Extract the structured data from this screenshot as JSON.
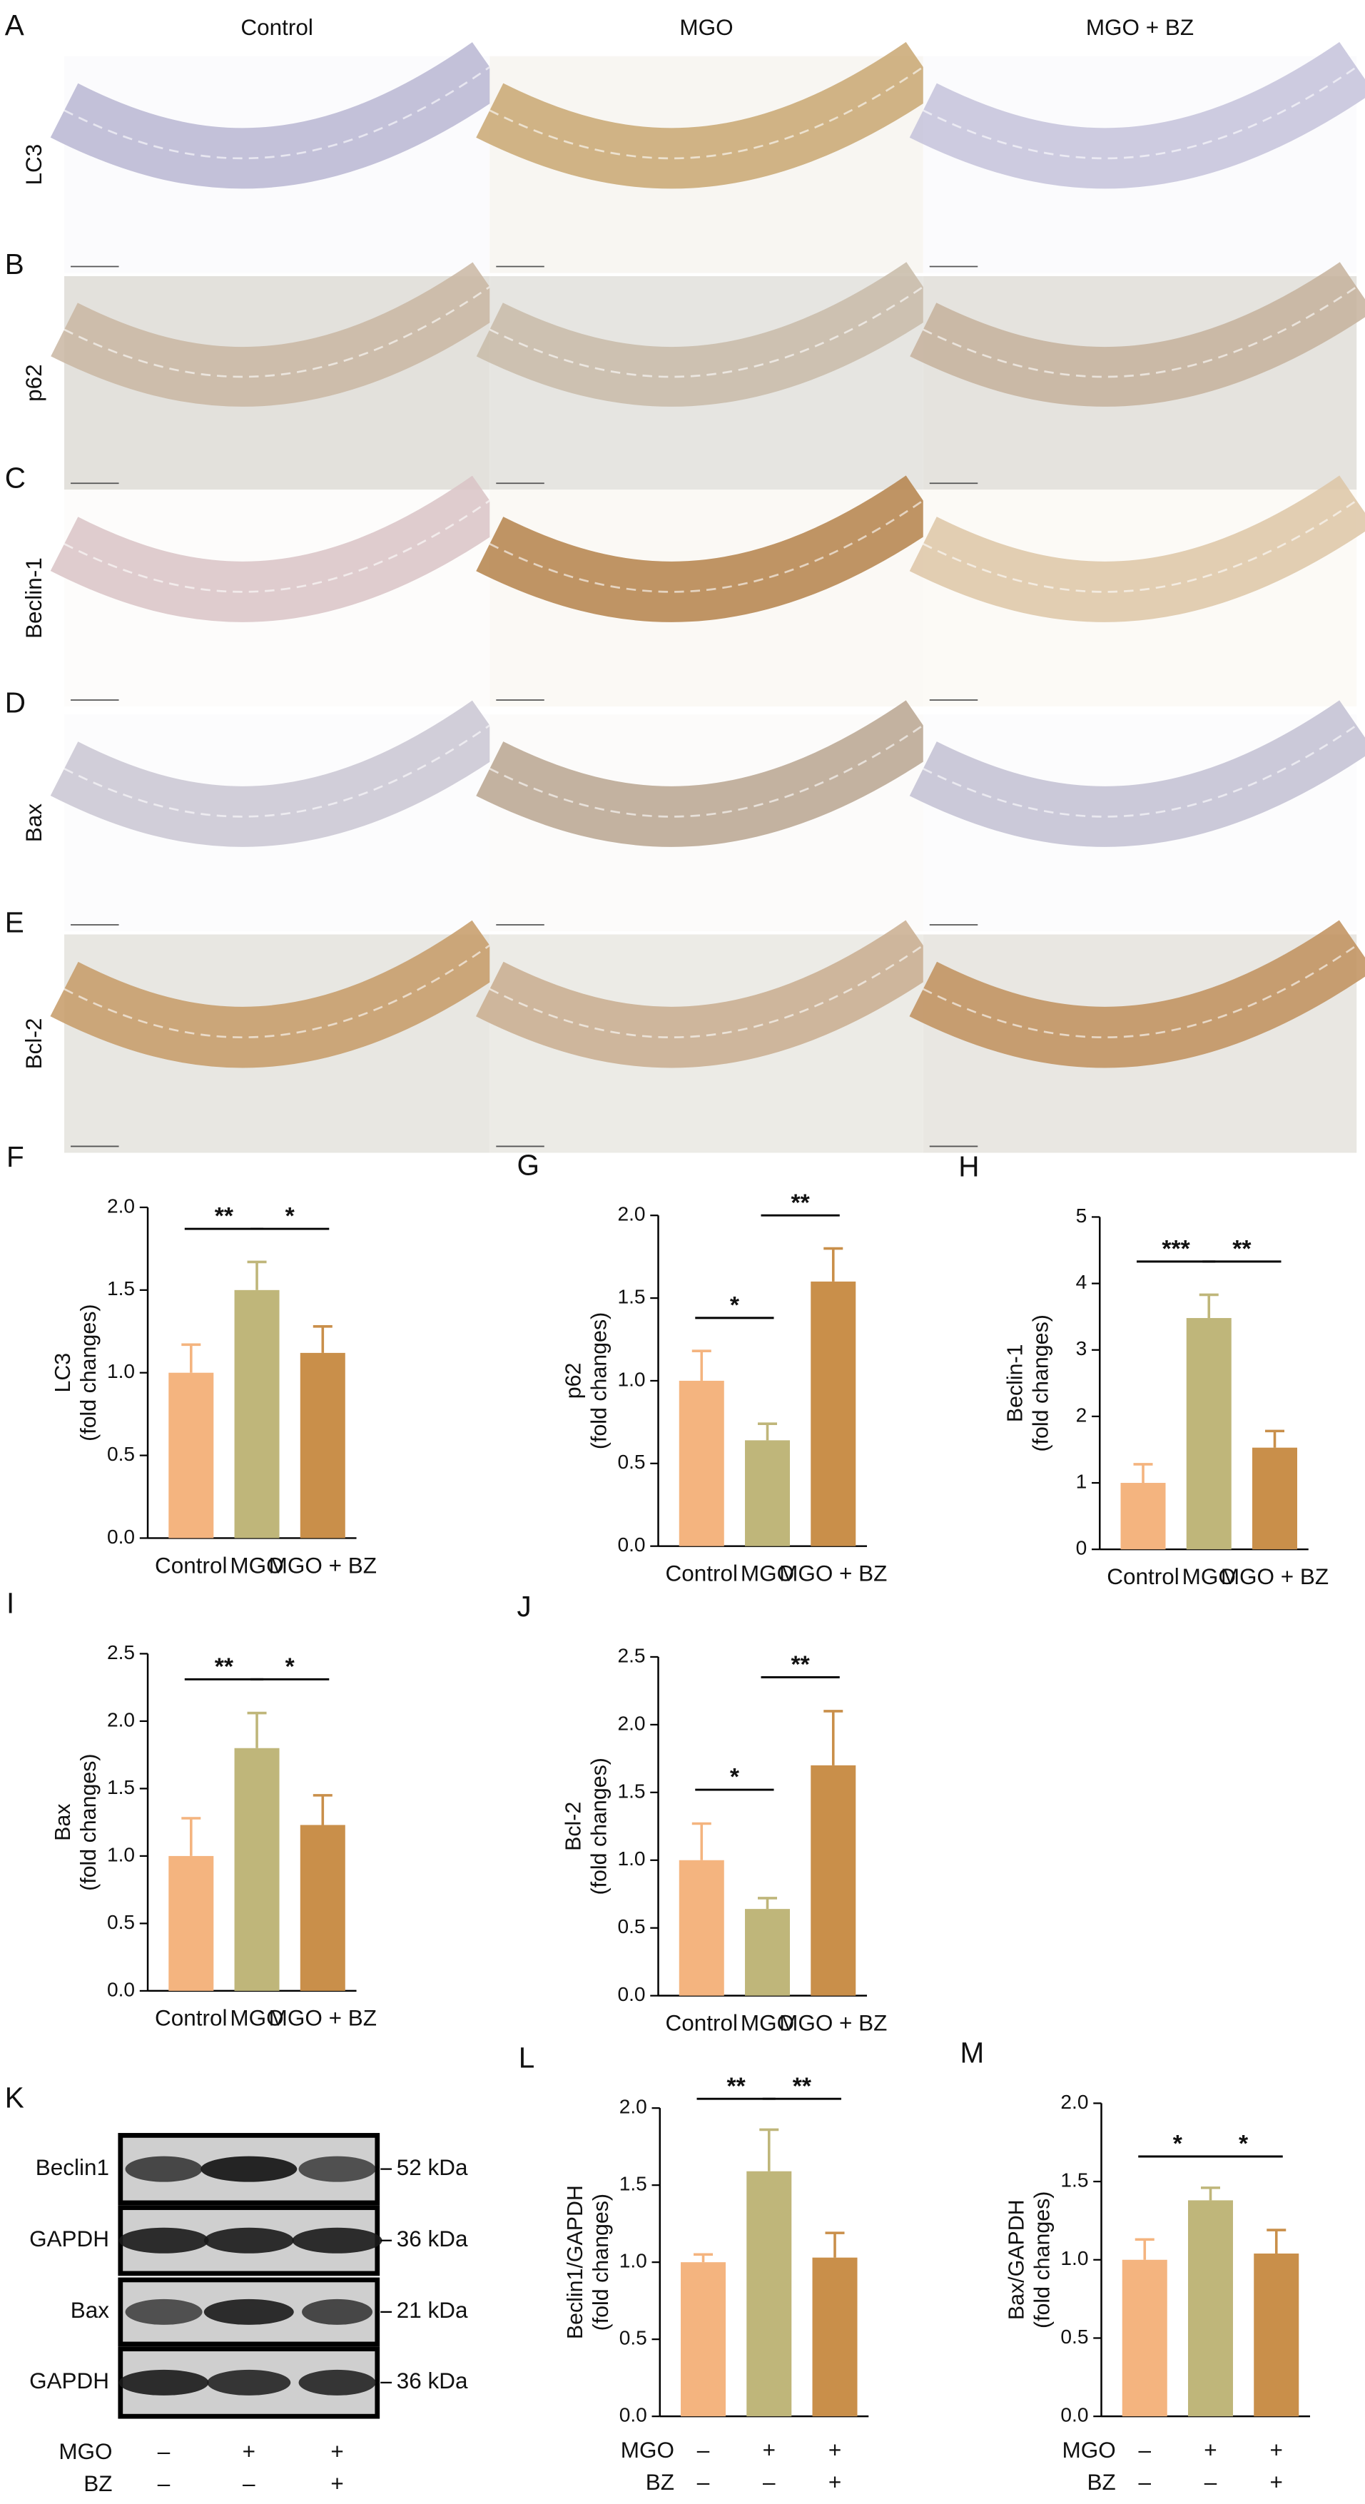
{
  "histology": {
    "columns": [
      "Control",
      "MGO",
      "MGO + BZ"
    ],
    "rows": [
      {
        "panel": "A",
        "label": "LC3"
      },
      {
        "panel": "B",
        "label": "p62"
      },
      {
        "panel": "C",
        "label": "Beclin-1"
      },
      {
        "panel": "D",
        "label": "Bax"
      },
      {
        "panel": "E",
        "label": "Bcl-2"
      }
    ]
  },
  "blot": {
    "panel": "K",
    "rows": [
      {
        "label": "Beclin1",
        "size": "52 kDa"
      },
      {
        "label": "GAPDH",
        "size": "36 kDa"
      },
      {
        "label": "Bax",
        "size": "21 kDa"
      },
      {
        "label": "GAPDH",
        "size": "36 kDa"
      }
    ],
    "conditions": [
      {
        "label": "MGO",
        "signs": [
          "–",
          "+",
          "+"
        ]
      },
      {
        "label": "BZ",
        "signs": [
          "–",
          "–",
          "+"
        ]
      }
    ]
  },
  "chart_data": [
    {
      "type": "bar",
      "panel": "F",
      "ylabel": [
        "LC3",
        "(fold changes)"
      ],
      "categories": [
        "Control",
        "MGO",
        "MGO + BZ"
      ],
      "values": [
        1.0,
        1.5,
        1.12
      ],
      "errors": [
        0.17,
        0.17,
        0.16
      ],
      "colors": [
        "#f4b47f",
        "#bfb67a",
        "#c98f4a"
      ],
      "ylim": [
        0,
        2.0
      ],
      "yticks": [
        {
          "value": 0,
          "label": "0.0"
        },
        0.5,
        {
          "value": 1,
          "label": "1.0"
        },
        1.5,
        {
          "value": 2,
          "label": "2.0"
        }
      ],
      "significance": [
        {
          "label": "**",
          "between": [
            0,
            1
          ]
        },
        {
          "label": "*",
          "between": [
            1,
            2
          ]
        }
      ]
    },
    {
      "type": "bar",
      "panel": "G",
      "ylabel": [
        "p62",
        "(fold changes)"
      ],
      "categories": [
        "Control",
        "MGO",
        "MGO + BZ"
      ],
      "values": [
        1.0,
        0.64,
        1.6
      ],
      "errors": [
        0.18,
        0.1,
        0.2
      ],
      "colors": [
        "#f4b47f",
        "#bfb67a",
        "#c98f4a"
      ],
      "ylim": [
        0,
        2.0
      ],
      "yticks": [
        {
          "value": 0,
          "label": "0.0"
        },
        0.5,
        {
          "value": 1,
          "label": "1.0"
        },
        1.5,
        {
          "value": 2,
          "label": "2.0"
        }
      ],
      "significance": [
        {
          "label": "*",
          "between": [
            0,
            1
          ]
        },
        {
          "label": "**",
          "between": [
            1,
            2
          ]
        }
      ]
    },
    {
      "type": "bar",
      "panel": "H",
      "ylabel": [
        "Beclin-1",
        "(fold changes)"
      ],
      "categories": [
        "Control",
        "MGO",
        "MGO + BZ"
      ],
      "values": [
        1.0,
        3.48,
        1.53
      ],
      "errors": [
        0.28,
        0.35,
        0.25
      ],
      "colors": [
        "#f4b47f",
        "#bfb67a",
        "#c98f4a"
      ],
      "ylim": [
        0,
        5
      ],
      "yticks": [
        0,
        1,
        2,
        3,
        4,
        5
      ],
      "significance": [
        {
          "label": "***",
          "between": [
            0,
            1
          ]
        },
        {
          "label": "**",
          "between": [
            1,
            2
          ]
        }
      ]
    },
    {
      "type": "bar",
      "panel": "I",
      "ylabel": [
        "Bax",
        "(fold changes)"
      ],
      "categories": [
        "Control",
        "MGO",
        "MGO + BZ"
      ],
      "values": [
        1.0,
        1.8,
        1.23
      ],
      "errors": [
        0.28,
        0.26,
        0.22
      ],
      "colors": [
        "#f4b47f",
        "#bfb67a",
        "#c98f4a"
      ],
      "ylim": [
        0,
        2.5
      ],
      "yticks": [
        {
          "value": 0,
          "label": "0.0"
        },
        0.5,
        {
          "value": 1,
          "label": "1.0"
        },
        1.5,
        {
          "value": 2,
          "label": "2.0"
        },
        2.5
      ],
      "significance": [
        {
          "label": "**",
          "between": [
            0,
            1
          ]
        },
        {
          "label": "*",
          "between": [
            1,
            2
          ]
        }
      ]
    },
    {
      "type": "bar",
      "panel": "J",
      "ylabel": [
        "Bcl-2",
        "(fold changes)"
      ],
      "categories": [
        "Control",
        "MGO",
        "MGO + BZ"
      ],
      "values": [
        1.0,
        0.64,
        1.7
      ],
      "errors": [
        0.27,
        0.08,
        0.4
      ],
      "colors": [
        "#f4b47f",
        "#bfb67a",
        "#c98f4a"
      ],
      "ylim": [
        0,
        2.5
      ],
      "yticks": [
        {
          "value": 0,
          "label": "0.0"
        },
        0.5,
        {
          "value": 1,
          "label": "1.0"
        },
        1.5,
        {
          "value": 2,
          "label": "2.0"
        },
        2.5
      ],
      "significance": [
        {
          "label": "*",
          "between": [
            0,
            1
          ]
        },
        {
          "label": "**",
          "between": [
            1,
            2
          ]
        }
      ]
    },
    {
      "type": "bar",
      "panel": "L",
      "ylabel": [
        "Beclin1/GAPDH",
        "(fold changes)"
      ],
      "category_rows": [
        {
          "label": "MGO",
          "signs": [
            "–",
            "+",
            "+"
          ]
        },
        {
          "label": "BZ",
          "signs": [
            "–",
            "–",
            "+"
          ]
        }
      ],
      "values": [
        1.0,
        1.59,
        1.03
      ],
      "errors": [
        0.05,
        0.27,
        0.16
      ],
      "colors": [
        "#f4b47f",
        "#bfb67a",
        "#c98f4a"
      ],
      "ylim": [
        0,
        2.0
      ],
      "yticks": [
        {
          "value": 0,
          "label": "0.0"
        },
        0.5,
        {
          "value": 1,
          "label": "1.0"
        },
        1.5,
        {
          "value": 2,
          "label": "2.0"
        }
      ],
      "significance": [
        {
          "label": "**",
          "between": [
            0,
            1
          ]
        },
        {
          "label": "**",
          "between": [
            1,
            2
          ]
        }
      ]
    },
    {
      "type": "bar",
      "panel": "M",
      "ylabel": [
        "Bax/GAPDH",
        "(fold changes)"
      ],
      "category_rows": [
        {
          "label": "MGO",
          "signs": [
            "–",
            "+",
            "+"
          ]
        },
        {
          "label": "BZ",
          "signs": [
            "–",
            "–",
            "+"
          ]
        }
      ],
      "values": [
        1.0,
        1.38,
        1.04
      ],
      "errors": [
        0.13,
        0.08,
        0.15
      ],
      "colors": [
        "#f4b47f",
        "#bfb67a",
        "#c98f4a"
      ],
      "ylim": [
        0,
        2.0
      ],
      "yticks": [
        {
          "value": 0,
          "label": "0.0"
        },
        0.5,
        {
          "value": 1,
          "label": "1.0"
        },
        1.5,
        {
          "value": 2,
          "label": "2.0"
        }
      ],
      "significance": [
        {
          "label": "*",
          "between": [
            0,
            1
          ]
        },
        {
          "label": "*",
          "between": [
            1,
            2
          ]
        }
      ]
    }
  ]
}
